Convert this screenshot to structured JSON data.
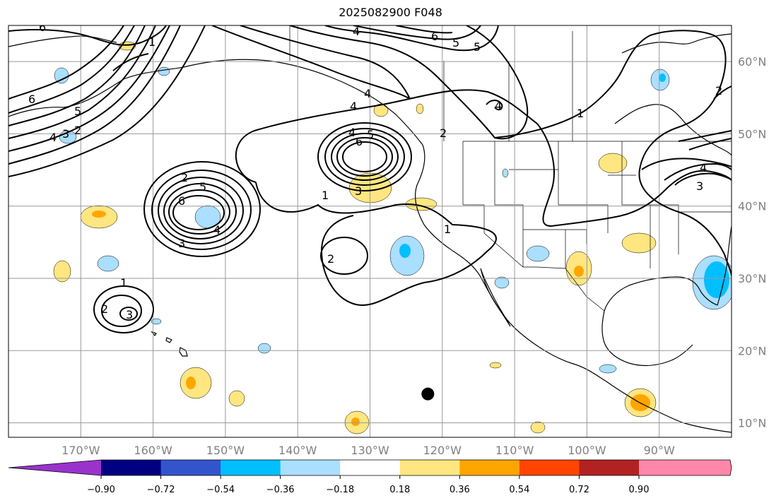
{
  "title": "2025082900 F048",
  "map": {
    "lon_range": [
      -180,
      -80
    ],
    "lat_range": [
      8,
      65
    ],
    "gridline_longitudes": [
      -170,
      -160,
      -150,
      -140,
      -130,
      -120,
      -110,
      -100,
      -90
    ],
    "gridline_latitudes": [
      10,
      20,
      30,
      40,
      50,
      60
    ],
    "lon_tick_labels": [
      "170°W",
      "160°W",
      "150°W",
      "140°W",
      "130°W",
      "120°W",
      "110°W",
      "100°W",
      "90°W"
    ],
    "lat_tick_labels": [
      "10°N",
      "20°N",
      "30°N",
      "40°N",
      "50°N",
      "60°N"
    ],
    "grid": true,
    "marker": {
      "lon": -122,
      "lat": 14,
      "color": "#000000"
    }
  },
  "colorbar": {
    "tick_labels": [
      "−0.90",
      "−0.72",
      "−0.54",
      "−0.36",
      "−0.18",
      "0.18",
      "0.36",
      "0.54",
      "0.72",
      "0.90"
    ],
    "colors": [
      "#9933cc",
      "#000080",
      "#3355cc",
      "#00bfff",
      "#aadfff",
      "#ffffff",
      "#ffe680",
      "#ffa500",
      "#ff4500",
      "#b22222",
      "#ff88aa"
    ]
  },
  "contours": [
    {
      "center_lon": -151,
      "center_lat": 38.5,
      "labels": [
        "2",
        "5",
        "6",
        "4",
        "3"
      ]
    },
    {
      "center_lon": -130,
      "center_lat": 46,
      "labels": [
        "4",
        "5",
        "6",
        "3",
        "1"
      ]
    },
    {
      "center_lon": -164,
      "center_lat": 26,
      "labels": [
        "1",
        "2",
        "3"
      ]
    },
    {
      "center_lon": -125,
      "center_lat": 35,
      "labels": [
        "2",
        "1"
      ]
    },
    {
      "center_lon": -118,
      "center_lat": 63,
      "labels": [
        "6",
        "5",
        "4"
      ]
    }
  ]
}
